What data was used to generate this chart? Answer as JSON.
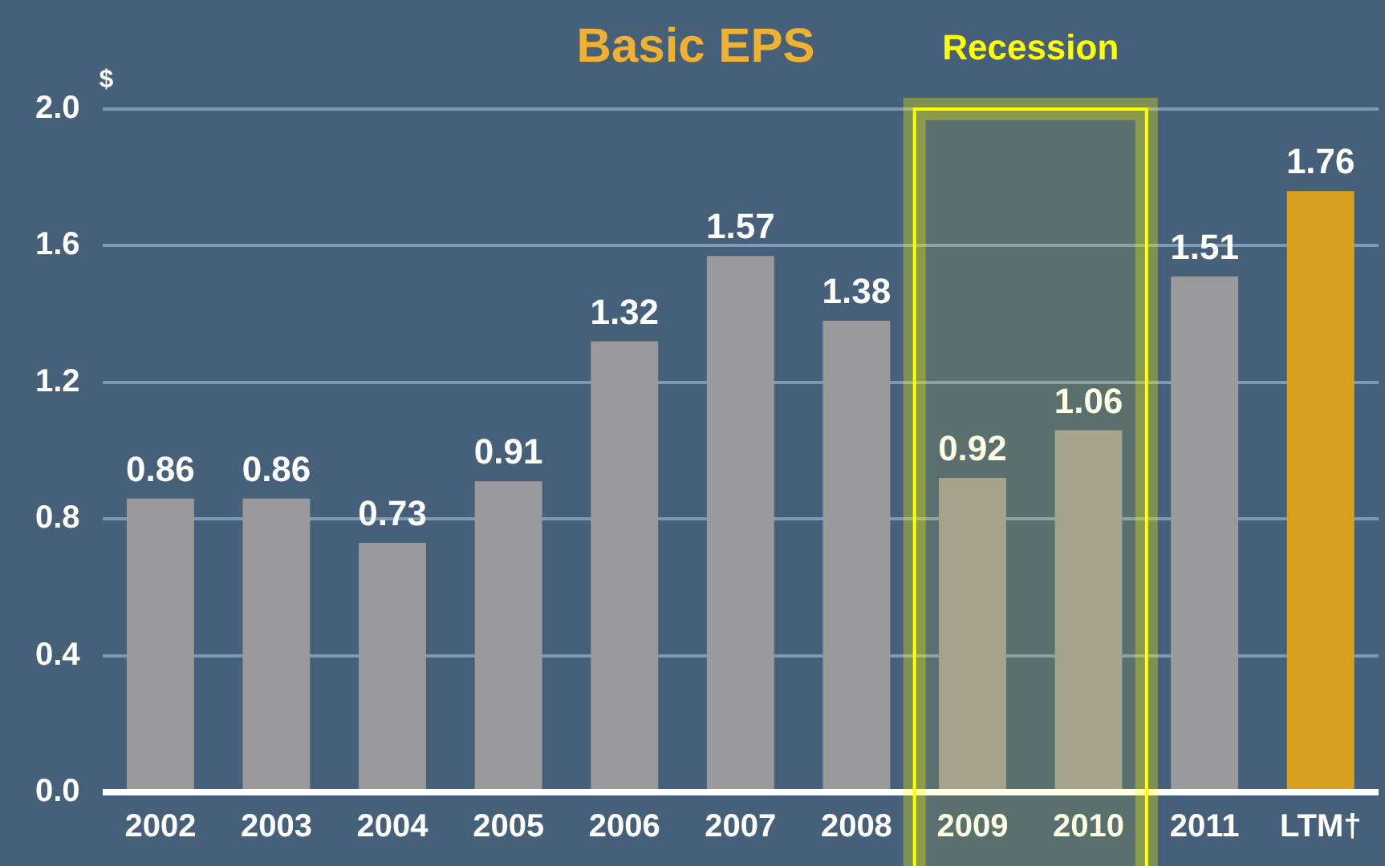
{
  "chart_data": {
    "type": "bar",
    "title": "Basic EPS",
    "ylabel": "$",
    "categories": [
      "2002",
      "2003",
      "2004",
      "2005",
      "2006",
      "2007",
      "2008",
      "2009",
      "2010",
      "2011",
      "LTM†"
    ],
    "values": [
      0.86,
      0.86,
      0.73,
      0.91,
      1.32,
      1.57,
      1.38,
      0.92,
      1.06,
      1.51,
      1.76
    ],
    "colors": [
      "#9a9a9c",
      "#9a9a9c",
      "#9a9a9c",
      "#9a9a9c",
      "#9a9a9c",
      "#9a9a9c",
      "#9a9a9c",
      "#9a9a9c",
      "#9a9a9c",
      "#9a9a9c",
      "#d9a020"
    ],
    "ylim": [
      0,
      2.0
    ],
    "yticks": [
      {
        "value": 0,
        "label": "0.0"
      },
      {
        "value": 0.4,
        "label": "0.4"
      },
      {
        "value": 0.8,
        "label": "0.8"
      },
      {
        "value": 1.2,
        "label": "1.2"
      },
      {
        "value": 1.6,
        "label": "1.6"
      },
      {
        "value": 2.0,
        "label": "2.0"
      }
    ],
    "bands": [
      {
        "axis": "x",
        "from": "2009",
        "to": "2010",
        "label": "Recession",
        "color": "#ffff00"
      }
    ],
    "grid": "y",
    "data_labels": true,
    "legend": false
  }
}
